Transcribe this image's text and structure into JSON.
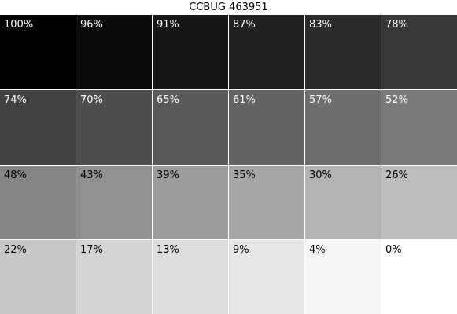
{
  "title": "CCBUG 463951",
  "grid": {
    "rows": [
      [
        {
          "label": "100%",
          "color": "#000000",
          "text_color": "#ffffff"
        },
        {
          "label": "96%",
          "color": "#0a0a0a",
          "text_color": "#ffffff"
        },
        {
          "label": "91%",
          "color": "#171717",
          "text_color": "#ffffff"
        },
        {
          "label": "87%",
          "color": "#212121",
          "text_color": "#ffffff"
        },
        {
          "label": "83%",
          "color": "#2b2b2b",
          "text_color": "#ffffff"
        },
        {
          "label": "78%",
          "color": "#383838",
          "text_color": "#ffffff"
        }
      ],
      [
        {
          "label": "74%",
          "color": "#424242",
          "text_color": "#ffffff"
        },
        {
          "label": "70%",
          "color": "#4d4d4d",
          "text_color": "#ffffff"
        },
        {
          "label": "65%",
          "color": "#595959",
          "text_color": "#ffffff"
        },
        {
          "label": "61%",
          "color": "#636363",
          "text_color": "#ffffff"
        },
        {
          "label": "57%",
          "color": "#6e6e6e",
          "text_color": "#ffffff"
        },
        {
          "label": "52%",
          "color": "#7a7a7a",
          "text_color": "#ffffff"
        }
      ],
      [
        {
          "label": "48%",
          "color": "#858585",
          "text_color": "#000000"
        },
        {
          "label": "43%",
          "color": "#919191",
          "text_color": "#000000"
        },
        {
          "label": "39%",
          "color": "#9c9c9c",
          "text_color": "#000000"
        },
        {
          "label": "35%",
          "color": "#a6a6a6",
          "text_color": "#000000"
        },
        {
          "label": "30%",
          "color": "#b3b3b3",
          "text_color": "#000000"
        },
        {
          "label": "26%",
          "color": "#bdbdbd",
          "text_color": "#000000"
        }
      ],
      [
        {
          "label": "22%",
          "color": "#c7c7c7",
          "text_color": "#000000"
        },
        {
          "label": "17%",
          "color": "#d4d4d4",
          "text_color": "#000000"
        },
        {
          "label": "13%",
          "color": "#dedede",
          "text_color": "#000000"
        },
        {
          "label": "9%",
          "color": "#e8e8e8",
          "text_color": "#000000"
        },
        {
          "label": "4%",
          "color": "#f5f5f5",
          "text_color": "#000000"
        },
        {
          "label": "0%",
          "color": "#ffffff",
          "text_color": "#000000"
        }
      ]
    ]
  }
}
